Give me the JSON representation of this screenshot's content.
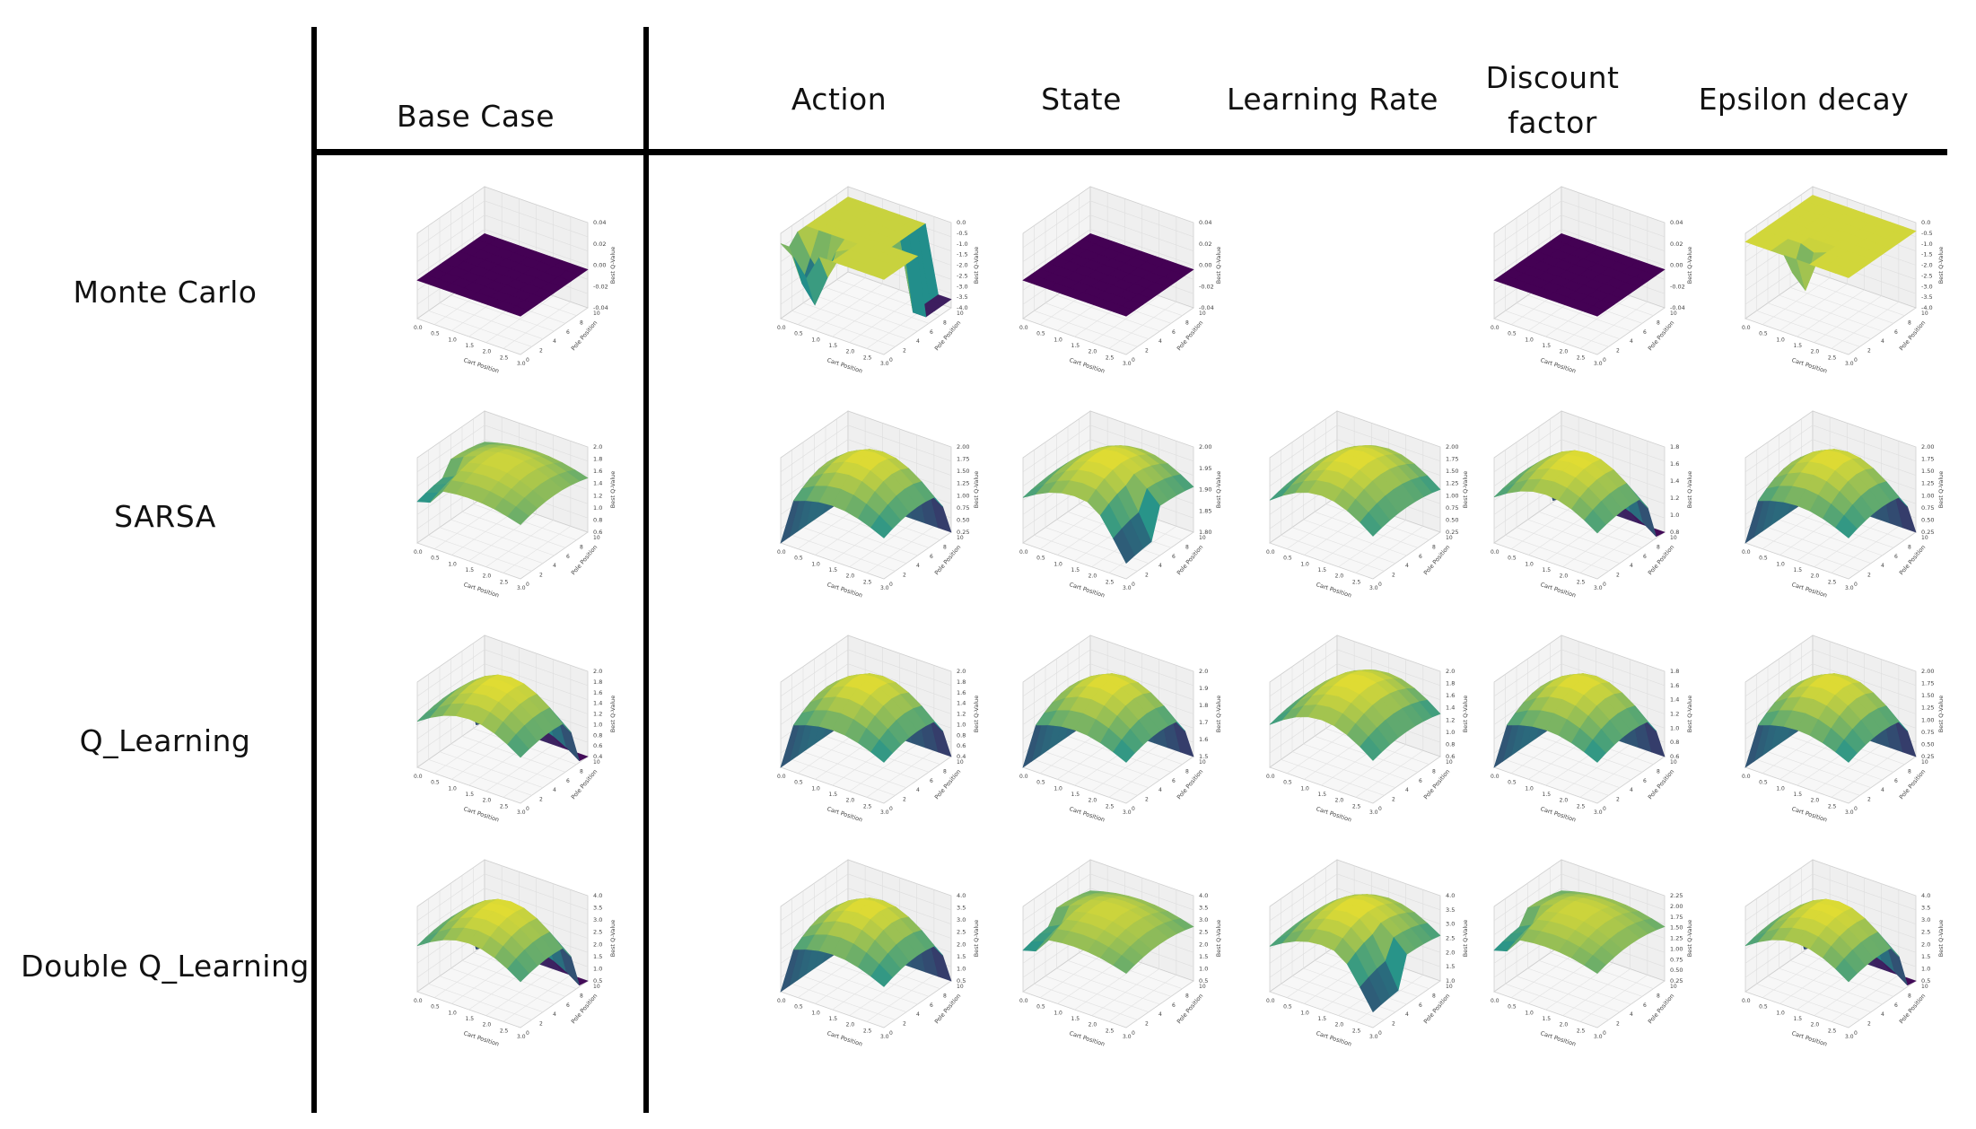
{
  "columns": [
    {
      "key": "base",
      "label_lines": [
        "Base Case"
      ]
    },
    {
      "key": "action",
      "label_lines": [
        "Action"
      ]
    },
    {
      "key": "state",
      "label_lines": [
        "State"
      ]
    },
    {
      "key": "learning_rate",
      "label_lines": [
        "Learning Rate"
      ]
    },
    {
      "key": "discount",
      "label_lines": [
        "Discount",
        "factor"
      ]
    },
    {
      "key": "epsilon",
      "label_lines": [
        "Epsilon decay"
      ]
    }
  ],
  "rows": [
    {
      "key": "monte_carlo",
      "label": "Monte Carlo"
    },
    {
      "key": "sarsa",
      "label": "SARSA"
    },
    {
      "key": "q_learning",
      "label": "Q_Learning"
    },
    {
      "key": "double_q",
      "label": "Double Q_Learning"
    }
  ],
  "axes": {
    "x_label": "Cart Position",
    "y_label": "Pole Position",
    "z_label": "Best Q-Value"
  },
  "colors": {
    "viridis_low": "#440154",
    "viridis_mid": "#21918c",
    "viridis_high": "#fde725"
  },
  "plots": {
    "monte_carlo": {
      "base": {
        "kind": "flat_step",
        "z_ticks": [
          "0.04",
          "0.02",
          "0.00",
          "-0.02",
          "-0.04"
        ]
      },
      "action": {
        "kind": "flat_spike_high",
        "z_ticks": [
          "0.0",
          "-0.5",
          "-1.0",
          "-1.5",
          "-2.0",
          "-2.5",
          "-3.0",
          "-3.5",
          "-4.0"
        ]
      },
      "state": {
        "kind": "flat",
        "z_ticks": [
          "0.04",
          "0.02",
          "0.00",
          "-0.02",
          "-0.04"
        ]
      },
      "learning_rate": null,
      "discount": {
        "kind": "flat",
        "z_ticks": [
          "0.04",
          "0.02",
          "0.00",
          "-0.02",
          "-0.04"
        ]
      },
      "epsilon": {
        "kind": "flat_spike_high_hole",
        "z_ticks": [
          "0.0",
          "-0.5",
          "-1.0",
          "-1.5",
          "-2.0",
          "-2.5",
          "-3.0",
          "-3.5",
          "-4.0"
        ]
      }
    },
    "sarsa": {
      "base": {
        "kind": "dome_small",
        "z_ticks": [
          "2.0",
          "1.8",
          "1.6",
          "1.4",
          "1.2",
          "1.0",
          "0.8",
          "0.6"
        ]
      },
      "action": {
        "kind": "dome_drop",
        "z_ticks": [
          "2.00",
          "1.75",
          "1.50",
          "1.25",
          "1.00",
          "0.75",
          "0.50",
          "0.25"
        ]
      },
      "state": {
        "kind": "dome_dip",
        "z_ticks": [
          "2.00",
          "1.95",
          "1.90",
          "1.85",
          "1.80"
        ]
      },
      "learning_rate": {
        "kind": "dome_wide",
        "z_ticks": [
          "2.00",
          "1.75",
          "1.50",
          "1.25",
          "1.00",
          "0.75",
          "0.50",
          "0.25"
        ]
      },
      "discount": {
        "kind": "dome_deep",
        "z_ticks": [
          "1.8",
          "1.6",
          "1.4",
          "1.2",
          "1.0",
          "0.8"
        ]
      },
      "epsilon": {
        "kind": "dome_drop",
        "z_ticks": [
          "2.00",
          "1.75",
          "1.50",
          "1.25",
          "1.00",
          "0.75",
          "0.50",
          "0.25"
        ]
      }
    },
    "q_learning": {
      "base": {
        "kind": "dome_deep",
        "z_ticks": [
          "2.0",
          "1.8",
          "1.6",
          "1.4",
          "1.2",
          "1.0",
          "0.8",
          "0.6",
          "0.4"
        ]
      },
      "action": {
        "kind": "dome_drop",
        "z_ticks": [
          "2.0",
          "1.8",
          "1.6",
          "1.4",
          "1.2",
          "1.0",
          "0.8",
          "0.6",
          "0.4"
        ]
      },
      "state": {
        "kind": "dome_drop",
        "z_ticks": [
          "2.0",
          "1.9",
          "1.8",
          "1.7",
          "1.6",
          "1.5"
        ]
      },
      "learning_rate": {
        "kind": "dome_wide",
        "z_ticks": [
          "2.0",
          "1.8",
          "1.6",
          "1.4",
          "1.2",
          "1.0",
          "0.8",
          "0.6"
        ]
      },
      "discount": {
        "kind": "dome_drop",
        "z_ticks": [
          "1.8",
          "1.6",
          "1.4",
          "1.2",
          "1.0",
          "0.8",
          "0.6"
        ]
      },
      "epsilon": {
        "kind": "dome_drop",
        "z_ticks": [
          "2.00",
          "1.75",
          "1.50",
          "1.25",
          "1.00",
          "0.75",
          "0.50",
          "0.25"
        ]
      }
    },
    "double_q": {
      "base": {
        "kind": "dome_deep",
        "z_ticks": [
          "4.0",
          "3.5",
          "3.0",
          "2.5",
          "2.0",
          "1.5",
          "1.0",
          "0.5"
        ]
      },
      "action": {
        "kind": "dome_drop",
        "z_ticks": [
          "4.0",
          "3.5",
          "3.0",
          "2.5",
          "2.0",
          "1.5",
          "1.0",
          "0.5"
        ]
      },
      "state": {
        "kind": "dome_small",
        "z_ticks": [
          "4.0",
          "3.5",
          "3.0",
          "2.5",
          "2.0",
          "1.5",
          "1.0",
          "0.5"
        ]
      },
      "learning_rate": {
        "kind": "dome_dip",
        "z_ticks": [
          "4.0",
          "3.5",
          "3.0",
          "2.5",
          "2.0",
          "1.5",
          "1.0"
        ]
      },
      "discount": {
        "kind": "dome_small",
        "z_ticks": [
          "2.25",
          "2.00",
          "1.75",
          "1.50",
          "1.25",
          "1.00",
          "0.75",
          "0.50",
          "0.25"
        ]
      },
      "epsilon": {
        "kind": "dome_deep",
        "z_ticks": [
          "4.0",
          "3.5",
          "3.0",
          "2.5",
          "2.0",
          "1.5",
          "1.0",
          "0.5"
        ]
      }
    }
  },
  "x_ticks": [
    "0.0",
    "0.5",
    "1.0",
    "1.5",
    "2.0",
    "2.5",
    "3.0"
  ],
  "y_ticks": [
    "0",
    "2",
    "4",
    "6",
    "8",
    "10"
  ]
}
